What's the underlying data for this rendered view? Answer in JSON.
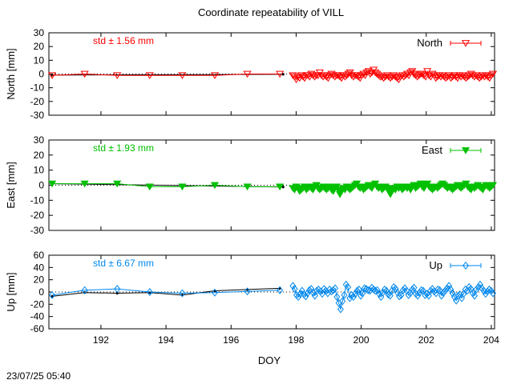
{
  "chart_data": {
    "type": "line",
    "title": "Coordinate repeatability of VILL",
    "xlabel": "DOY",
    "xlim": [
      190.4,
      204.1
    ],
    "xticks": [
      192,
      194,
      196,
      198,
      200,
      202,
      204
    ],
    "xtick_labels": [
      "192",
      "194",
      "196",
      "198",
      "200",
      "202",
      "204"
    ],
    "timestamp": "23/07/25 05:40",
    "panels": [
      {
        "id": "north",
        "ylabel": "North [mm]",
        "ylim": [
          -30,
          30
        ],
        "yticks": [
          30,
          20,
          10,
          0,
          -10,
          -20,
          -30
        ],
        "ytick_labels": [
          "30",
          "20",
          "10",
          "0",
          "-10",
          "-20",
          "-30"
        ],
        "std_label": "std ± 1.56 mm",
        "legend": "North",
        "color": "#ff0000",
        "marker": "triangle-down-open",
        "daily_x": [
          190.5,
          191.5,
          192.5,
          193.5,
          194.5,
          195.5,
          196.5,
          197.5
        ],
        "daily_y": [
          -1,
          0,
          -1,
          -1,
          -1,
          -1,
          0,
          0
        ],
        "trend_x": [
          190.5,
          197.6
        ],
        "trend_y": [
          -0.8,
          -0.2
        ],
        "dense_x_start": 197.9,
        "dense_x_end": 204.05,
        "dense_y": [
          -1,
          -2,
          -4,
          -2,
          -3,
          -1,
          -2,
          -3,
          -1,
          -1,
          -2,
          0,
          -1,
          -2,
          -1,
          -1,
          1,
          -1,
          -2,
          -1,
          -2,
          -3,
          -1,
          0,
          -1,
          -2,
          -1,
          -1,
          -2,
          -3,
          -1,
          -2,
          -1,
          0,
          1,
          -1,
          -2,
          -1,
          -1,
          -2,
          -3,
          -1,
          0,
          -1,
          1,
          2,
          0,
          1,
          3,
          1,
          0,
          -1,
          -2,
          -2,
          -3,
          -2,
          -1,
          -2,
          -3,
          -2,
          -1,
          -2,
          -3,
          -4,
          -2,
          -1,
          -2,
          -1,
          0,
          -1,
          1,
          2,
          0,
          -1,
          -2,
          -1,
          0,
          0,
          -1,
          -2,
          2,
          -1,
          -2,
          0,
          -1,
          -3,
          -2,
          -1,
          -2,
          -1,
          -2,
          -3,
          -2,
          -1,
          -3,
          -2,
          -1,
          -2,
          -3,
          -1,
          -2,
          -1,
          -2,
          -3,
          -2,
          -1,
          0,
          -1,
          -2,
          -1,
          -2,
          -3,
          -2,
          -1,
          -2,
          -1,
          -2,
          -3,
          -1,
          0
        ]
      },
      {
        "id": "east",
        "ylabel": "East [mm]",
        "ylim": [
          -30,
          30
        ],
        "yticks": [
          30,
          20,
          10,
          0,
          -10,
          -20,
          -30
        ],
        "ytick_labels": [
          "30",
          "20",
          "10",
          "0",
          "-10",
          "-20",
          "-30"
        ],
        "std_label": "std ± 1.93 mm",
        "legend": "East",
        "color": "#00c000",
        "marker": "triangle-down-filled",
        "daily_x": [
          190.5,
          191.5,
          192.5,
          193.5,
          194.5,
          195.5,
          196.5,
          197.5
        ],
        "daily_y": [
          1,
          1,
          1,
          -1,
          -1,
          0,
          -1,
          -1
        ],
        "trend_x": [
          190.5,
          197.6
        ],
        "trend_y": [
          1,
          -1.2
        ],
        "dense_x_start": 197.9,
        "dense_x_end": 204.05,
        "dense_y": [
          -2,
          -3,
          -1,
          -2,
          -4,
          -3,
          -2,
          -1,
          -3,
          -2,
          -1,
          -2,
          -3,
          -1,
          0,
          -2,
          -3,
          -2,
          -1,
          -2,
          -3,
          -2,
          -1,
          -3,
          -4,
          -2,
          -1,
          -3,
          -6,
          -4,
          -2,
          -3,
          -1,
          -2,
          -3,
          -2,
          -1,
          0,
          1,
          -1,
          -2,
          -1,
          -3,
          -2,
          -1,
          0,
          -1,
          -2,
          0,
          1,
          -1,
          -2,
          -1,
          -3,
          -2,
          -1,
          -2,
          -4,
          -6,
          -3,
          -2,
          -3,
          -1,
          -2,
          -1,
          -3,
          -2,
          -1,
          -2,
          -1,
          -3,
          -1,
          0,
          -2,
          -1,
          0,
          1,
          -1,
          -2,
          0,
          1,
          -1,
          -2,
          -3,
          -2,
          -1,
          -2,
          -1,
          0,
          1,
          0,
          -1,
          -2,
          -1,
          -2,
          -3,
          -2,
          -1,
          0,
          -1,
          -2,
          -1,
          0,
          1,
          -1,
          -2,
          -3,
          -1,
          -2,
          -1,
          0,
          -1,
          -2,
          -3,
          -1,
          0,
          -1,
          -2,
          -1,
          0
        ]
      },
      {
        "id": "up",
        "ylabel": "Up [mm]",
        "ylim": [
          -60,
          60
        ],
        "yticks": [
          60,
          40,
          20,
          0,
          -20,
          -40,
          -60
        ],
        "ytick_labels": [
          "60",
          "40",
          "20",
          "0",
          "-20",
          "-40",
          "-60"
        ],
        "std_label": "std ± 6.67 mm",
        "legend": "Up",
        "color": "#0088ee",
        "marker": "diamond-open",
        "daily_x": [
          190.5,
          191.5,
          192.5,
          193.5,
          194.5,
          195.5,
          196.5,
          197.5
        ],
        "daily_y": [
          -5,
          3,
          5,
          0,
          -2,
          -1,
          1,
          3
        ],
        "trend_x": [
          190.5,
          191.5,
          192.5,
          193.5,
          194.5,
          195.5,
          196.5,
          197.5
        ],
        "trend_y": [
          -7,
          -1,
          -2,
          -1,
          -5,
          2,
          4,
          6
        ],
        "dense_x_start": 197.9,
        "dense_x_end": 204.05,
        "dense_y": [
          10,
          5,
          -5,
          -8,
          -3,
          2,
          -4,
          -7,
          -2,
          3,
          5,
          -1,
          -6,
          2,
          4,
          1,
          -3,
          5,
          2,
          -2,
          4,
          1,
          3,
          6,
          -8,
          -18,
          -28,
          -15,
          -5,
          12,
          8,
          -10,
          -5,
          -8,
          -3,
          2,
          4,
          -6,
          -2,
          6,
          5,
          3,
          2,
          7,
          4,
          2,
          3,
          -3,
          -8,
          -1,
          4,
          2,
          -4,
          -6,
          2,
          8,
          5,
          -1,
          -7,
          -5,
          3,
          6,
          2,
          -5,
          -2,
          4,
          7,
          -3,
          -6,
          -1,
          3,
          2,
          -5,
          -3,
          -6,
          2,
          5,
          1,
          -2,
          4,
          3,
          -6,
          -1,
          2,
          6,
          10,
          4,
          -2,
          -8,
          -14,
          -6,
          -4,
          -10,
          -3,
          4,
          2,
          8,
          5,
          -2,
          -6,
          4,
          8,
          12,
          6,
          2,
          -3,
          1,
          4,
          2,
          -2
        ]
      }
    ]
  }
}
